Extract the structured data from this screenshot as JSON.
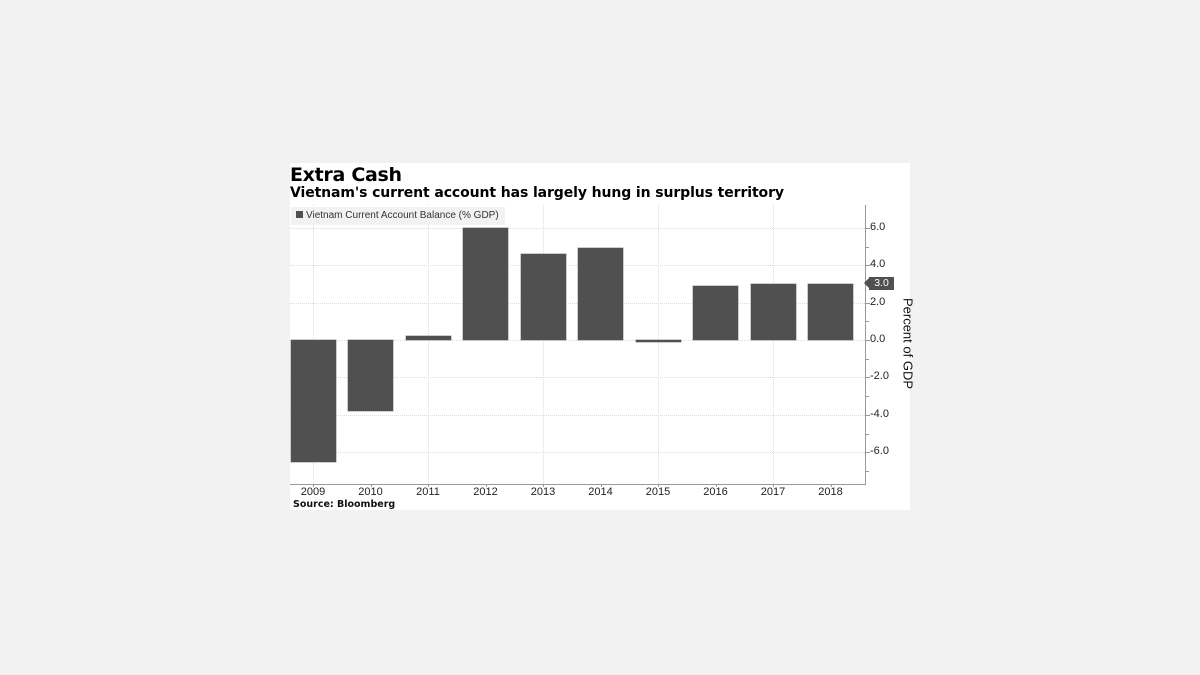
{
  "title": "Extra Cash",
  "subtitle": "Vietnam's current account has largely hung in surplus territory",
  "legend": {
    "label": "Vietnam Current Account Balance (% GDP)",
    "color": "#505050"
  },
  "source": "Source: Bloomberg",
  "last_value_label": "3.0",
  "y_axis_labels": [
    "6.0",
    "4.0",
    "2.0",
    "0.0",
    "-2.0",
    "-4.0",
    "-6.0"
  ],
  "chart_data": {
    "type": "bar",
    "title": "Extra Cash",
    "subtitle": "Vietnam's current account has largely hung in surplus territory",
    "categories": [
      "2009",
      "2010",
      "2011",
      "2012",
      "2013",
      "2014",
      "2015",
      "2016",
      "2017",
      "2018"
    ],
    "series": [
      {
        "name": "Vietnam Current Account Balance (% GDP)",
        "values": [
          -6.5,
          -3.8,
          0.2,
          6.0,
          4.6,
          4.9,
          -0.1,
          2.9,
          3.0,
          3.0
        ],
        "color": "#505050"
      }
    ],
    "xlabel": "",
    "ylabel": "Percent of GDP",
    "ylim": [
      -7.7,
      7.2
    ],
    "yticks": [
      6,
      4,
      2,
      0,
      -2,
      -4,
      -6
    ],
    "grid": true,
    "legend_position": "top-left",
    "axis_position": "right",
    "annotations": [
      {
        "type": "last-value-marker",
        "value": "3.0"
      }
    ],
    "source": "Bloomberg"
  }
}
